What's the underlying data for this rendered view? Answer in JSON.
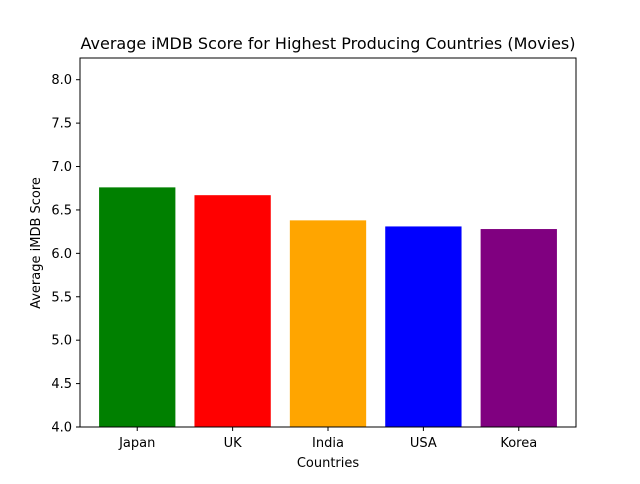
{
  "chart_data": {
    "type": "bar",
    "title": "Average iMDB Score for Highest Producing Countries (Movies)",
    "xlabel": "Countries",
    "ylabel": "Average iMDB Score",
    "categories": [
      "Japan",
      "UK",
      "India",
      "USA",
      "Korea"
    ],
    "values": [
      6.76,
      6.67,
      6.38,
      6.31,
      6.28
    ],
    "colors": [
      "#008000",
      "#ff0000",
      "#ffa500",
      "#0000ff",
      "#800080"
    ],
    "ylim": [
      4.0,
      8.25
    ],
    "yticks": [
      4.0,
      4.5,
      5.0,
      5.5,
      6.0,
      6.5,
      7.0,
      7.5,
      8.0
    ],
    "ytick_labels": [
      "4.0",
      "4.5",
      "5.0",
      "5.5",
      "6.0",
      "6.5",
      "7.0",
      "7.5",
      "8.0"
    ],
    "grid": false,
    "legend": "none"
  }
}
